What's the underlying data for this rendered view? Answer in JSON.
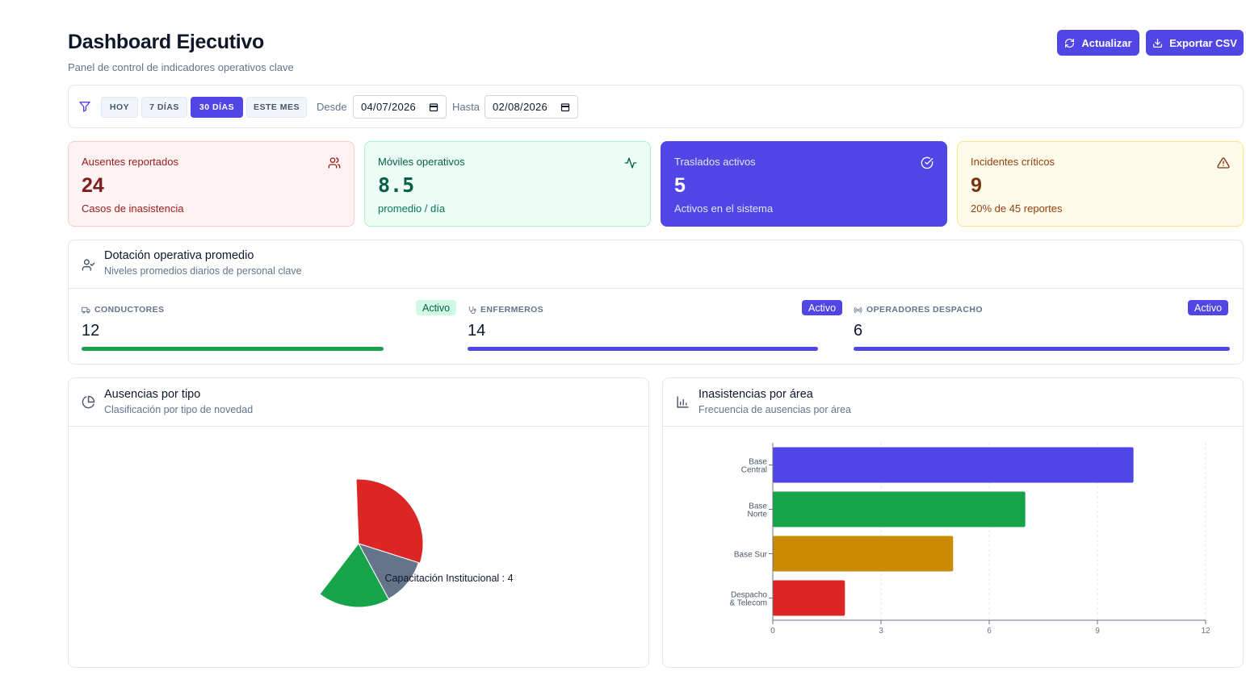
{
  "header": {
    "title": "Dashboard Ejecutivo",
    "subtitle": "Panel de control de indicadores operativos clave",
    "refresh_label": "Actualizar",
    "export_label": "Exportar CSV"
  },
  "filters": {
    "ranges": [
      "HOY",
      "7 DÍAS",
      "30 DÍAS",
      "ESTE MES"
    ],
    "active_range": "30 DÍAS",
    "from_label": "Desde",
    "from_value": "04/07/2026",
    "to_label": "Hasta",
    "to_value": "02/08/2026"
  },
  "kpis": [
    {
      "label": "Ausentes reportados",
      "value": "24",
      "sub": "Casos de inasistencia",
      "icon": "users-icon",
      "color": "#7f1d1d"
    },
    {
      "label": "Móviles operativos",
      "value": "8.5",
      "sub": "promedio / día",
      "icon": "activity-icon",
      "color": "#065f46"
    },
    {
      "label": "Traslados activos",
      "value": "5",
      "sub": "Activos en el sistema",
      "icon": "check-circle-icon",
      "color": "#ffffff"
    },
    {
      "label": "Incidentes críticos",
      "value": "9",
      "sub": "20% de 45 reportes",
      "icon": "alert-triangle-icon",
      "color": "#78350f"
    }
  ],
  "staffing": {
    "title": "Dotación operativa promedio",
    "subtitle": "Niveles promedios diarios de personal clave",
    "items": [
      {
        "label": "CONDUCTORES",
        "value": "12",
        "badge": "Activo",
        "icon": "truck-icon",
        "bar_color": "#16a34a",
        "fill_fraction": 0.81
      },
      {
        "label": "ENFERMEROS",
        "value": "14",
        "badge": "Activo",
        "icon": "stethoscope-icon",
        "bar_color": "#4f46e5",
        "fill_fraction": 0.94
      },
      {
        "label": "OPERADORES DESPACHO",
        "value": "6",
        "badge": "Activo",
        "icon": "radio-icon",
        "bar_color": "#4f46e5",
        "fill_fraction": 1.0
      }
    ]
  },
  "absence_panel": {
    "title": "Ausencias por tipo",
    "subtitle": "Clasificación por tipo de novedad",
    "tooltip": "Capacitación Institucional : 4"
  },
  "area_panel": {
    "title": "Inasistencias por área",
    "subtitle": "Frecuencia de ausencias por área"
  },
  "chart_data": [
    {
      "type": "pie",
      "title": "Ausencias por tipo",
      "slices": [
        {
          "value": 10,
          "color": "#dc2626"
        },
        {
          "value": 4,
          "name": "Capacitación Institucional",
          "color": "#64748b"
        },
        {
          "value": 6,
          "color": "#16a34a"
        }
      ],
      "annotation": "Capacitación Institucional : 4"
    },
    {
      "type": "bar",
      "orientation": "horizontal",
      "title": "Inasistencias por área",
      "categories": [
        "Base Central",
        "Base Norte",
        "Base Sur",
        "Despacho & Telecom"
      ],
      "values": [
        10,
        7,
        5,
        2
      ],
      "colors": [
        "#4f46e5",
        "#16a34a",
        "#ca8a04",
        "#dc2626"
      ],
      "xlim": [
        0,
        12
      ],
      "xticks": [
        0,
        3,
        6,
        9,
        12
      ],
      "grid": true
    }
  ]
}
